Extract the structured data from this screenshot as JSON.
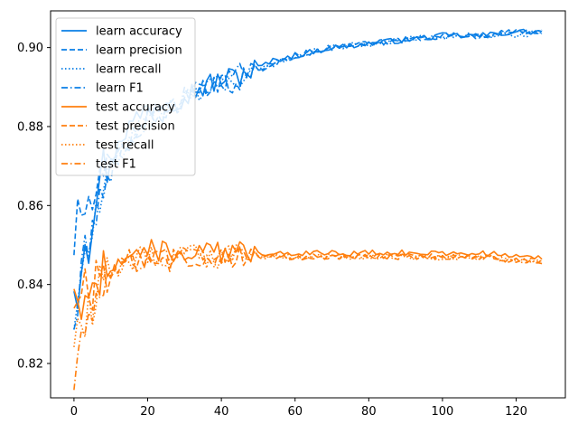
{
  "chart_data": {
    "type": "line",
    "title": "",
    "xlabel": "",
    "ylabel": "",
    "xlim": [
      -6.35,
      133.35
    ],
    "ylim": [
      0.8113,
      0.9093
    ],
    "xticks": [
      0,
      20,
      40,
      60,
      80,
      100,
      120
    ],
    "yticks": [
      0.82,
      0.84,
      0.86,
      0.88,
      0.9
    ],
    "ytick_labels": [
      "0.82",
      "0.84",
      "0.86",
      "0.88",
      "0.90"
    ],
    "grid": false,
    "legend_position": "top-left",
    "colors": {
      "learn": "#0a7fe6",
      "test": "#ff7f0e"
    },
    "series": [
      {
        "name": "learn accuracy",
        "group": "learn",
        "style": "solid",
        "anchors": [
          [
            0,
            0.841
          ],
          [
            1,
            0.839
          ],
          [
            3,
            0.853
          ],
          [
            4,
            0.851
          ],
          [
            6,
            0.864
          ],
          [
            8,
            0.87
          ],
          [
            10,
            0.87
          ],
          [
            12,
            0.877
          ],
          [
            15,
            0.88
          ],
          [
            20,
            0.885
          ],
          [
            25,
            0.886
          ],
          [
            30,
            0.888
          ],
          [
            35,
            0.89
          ],
          [
            40,
            0.892
          ],
          [
            45,
            0.893
          ],
          [
            50,
            0.895
          ],
          [
            55,
            0.897
          ],
          [
            60,
            0.898
          ],
          [
            70,
            0.9
          ],
          [
            80,
            0.901
          ],
          [
            90,
            0.902
          ],
          [
            100,
            0.903
          ],
          [
            110,
            0.903
          ],
          [
            120,
            0.904
          ],
          [
            127,
            0.904
          ]
        ]
      },
      {
        "name": "learn precision",
        "group": "learn",
        "style": "dashed",
        "anchors": [
          [
            0,
            0.85
          ],
          [
            1,
            0.857
          ],
          [
            3,
            0.859
          ],
          [
            5,
            0.861
          ],
          [
            8,
            0.866
          ],
          [
            12,
            0.873
          ],
          [
            16,
            0.878
          ],
          [
            20,
            0.882
          ],
          [
            25,
            0.884
          ],
          [
            30,
            0.887
          ],
          [
            35,
            0.889
          ],
          [
            40,
            0.89
          ],
          [
            45,
            0.892
          ],
          [
            50,
            0.894
          ],
          [
            55,
            0.896
          ],
          [
            60,
            0.898
          ],
          [
            70,
            0.9
          ],
          [
            80,
            0.901
          ],
          [
            90,
            0.902
          ],
          [
            100,
            0.903
          ],
          [
            110,
            0.903
          ],
          [
            120,
            0.904
          ],
          [
            127,
            0.904
          ]
        ]
      },
      {
        "name": "learn recall",
        "group": "learn",
        "style": "dotted",
        "anchors": [
          [
            0,
            0.831
          ],
          [
            1,
            0.833
          ],
          [
            3,
            0.848
          ],
          [
            5,
            0.852
          ],
          [
            8,
            0.865
          ],
          [
            12,
            0.872
          ],
          [
            16,
            0.878
          ],
          [
            20,
            0.882
          ],
          [
            25,
            0.884
          ],
          [
            30,
            0.887
          ],
          [
            35,
            0.889
          ],
          [
            40,
            0.891
          ],
          [
            45,
            0.893
          ],
          [
            50,
            0.894
          ],
          [
            55,
            0.896
          ],
          [
            60,
            0.898
          ],
          [
            70,
            0.9
          ],
          [
            80,
            0.901
          ],
          [
            90,
            0.902
          ],
          [
            100,
            0.903
          ],
          [
            110,
            0.903
          ],
          [
            120,
            0.903
          ],
          [
            127,
            0.904
          ]
        ]
      },
      {
        "name": "learn F1",
        "group": "learn",
        "style": "dashdot",
        "anchors": [
          [
            0,
            0.831
          ],
          [
            1,
            0.832
          ],
          [
            3,
            0.85
          ],
          [
            5,
            0.854
          ],
          [
            8,
            0.866
          ],
          [
            12,
            0.872
          ],
          [
            16,
            0.878
          ],
          [
            20,
            0.882
          ],
          [
            25,
            0.884
          ],
          [
            30,
            0.887
          ],
          [
            35,
            0.889
          ],
          [
            40,
            0.891
          ],
          [
            45,
            0.893
          ],
          [
            50,
            0.894
          ],
          [
            55,
            0.896
          ],
          [
            60,
            0.898
          ],
          [
            70,
            0.9
          ],
          [
            80,
            0.901
          ],
          [
            90,
            0.902
          ],
          [
            100,
            0.903
          ],
          [
            110,
            0.903
          ],
          [
            120,
            0.904
          ],
          [
            127,
            0.904
          ]
        ]
      },
      {
        "name": "test accuracy",
        "group": "test",
        "style": "solid",
        "anchors": [
          [
            0,
            0.841
          ],
          [
            1,
            0.838
          ],
          [
            3,
            0.833
          ],
          [
            5,
            0.836
          ],
          [
            7,
            0.842
          ],
          [
            10,
            0.846
          ],
          [
            15,
            0.847
          ],
          [
            20,
            0.849
          ],
          [
            25,
            0.848
          ],
          [
            30,
            0.848
          ],
          [
            40,
            0.848
          ],
          [
            50,
            0.848
          ],
          [
            60,
            0.848
          ],
          [
            70,
            0.848
          ],
          [
            80,
            0.848
          ],
          [
            90,
            0.848
          ],
          [
            100,
            0.848
          ],
          [
            110,
            0.848
          ],
          [
            120,
            0.847
          ],
          [
            127,
            0.847
          ]
        ]
      },
      {
        "name": "test precision",
        "group": "test",
        "style": "dashed",
        "anchors": [
          [
            0,
            0.836
          ],
          [
            1,
            0.84
          ],
          [
            3,
            0.838
          ],
          [
            5,
            0.839
          ],
          [
            7,
            0.842
          ],
          [
            10,
            0.844
          ],
          [
            15,
            0.846
          ],
          [
            20,
            0.847
          ],
          [
            25,
            0.846
          ],
          [
            30,
            0.847
          ],
          [
            40,
            0.847
          ],
          [
            50,
            0.847
          ],
          [
            60,
            0.847
          ],
          [
            70,
            0.847
          ],
          [
            80,
            0.847
          ],
          [
            90,
            0.847
          ],
          [
            100,
            0.847
          ],
          [
            110,
            0.847
          ],
          [
            120,
            0.846
          ],
          [
            127,
            0.846
          ]
        ]
      },
      {
        "name": "test recall",
        "group": "test",
        "style": "dotted",
        "anchors": [
          [
            0,
            0.826
          ],
          [
            1,
            0.826
          ],
          [
            3,
            0.831
          ],
          [
            5,
            0.833
          ],
          [
            7,
            0.84
          ],
          [
            10,
            0.844
          ],
          [
            15,
            0.846
          ],
          [
            20,
            0.848
          ],
          [
            25,
            0.846
          ],
          [
            30,
            0.847
          ],
          [
            40,
            0.847
          ],
          [
            50,
            0.847
          ],
          [
            60,
            0.847
          ],
          [
            70,
            0.847
          ],
          [
            80,
            0.847
          ],
          [
            90,
            0.847
          ],
          [
            100,
            0.847
          ],
          [
            110,
            0.847
          ],
          [
            120,
            0.846
          ],
          [
            127,
            0.846
          ]
        ]
      },
      {
        "name": "test F1",
        "group": "test",
        "style": "dashdot",
        "anchors": [
          [
            0,
            0.815
          ],
          [
            1,
            0.819
          ],
          [
            3,
            0.83
          ],
          [
            5,
            0.832
          ],
          [
            7,
            0.839
          ],
          [
            10,
            0.843
          ],
          [
            15,
            0.845
          ],
          [
            20,
            0.847
          ],
          [
            25,
            0.846
          ],
          [
            30,
            0.847
          ],
          [
            40,
            0.847
          ],
          [
            50,
            0.847
          ],
          [
            60,
            0.847
          ],
          [
            70,
            0.847
          ],
          [
            80,
            0.847
          ],
          [
            90,
            0.847
          ],
          [
            100,
            0.847
          ],
          [
            110,
            0.847
          ],
          [
            120,
            0.846
          ],
          [
            127,
            0.846
          ]
        ]
      }
    ]
  }
}
